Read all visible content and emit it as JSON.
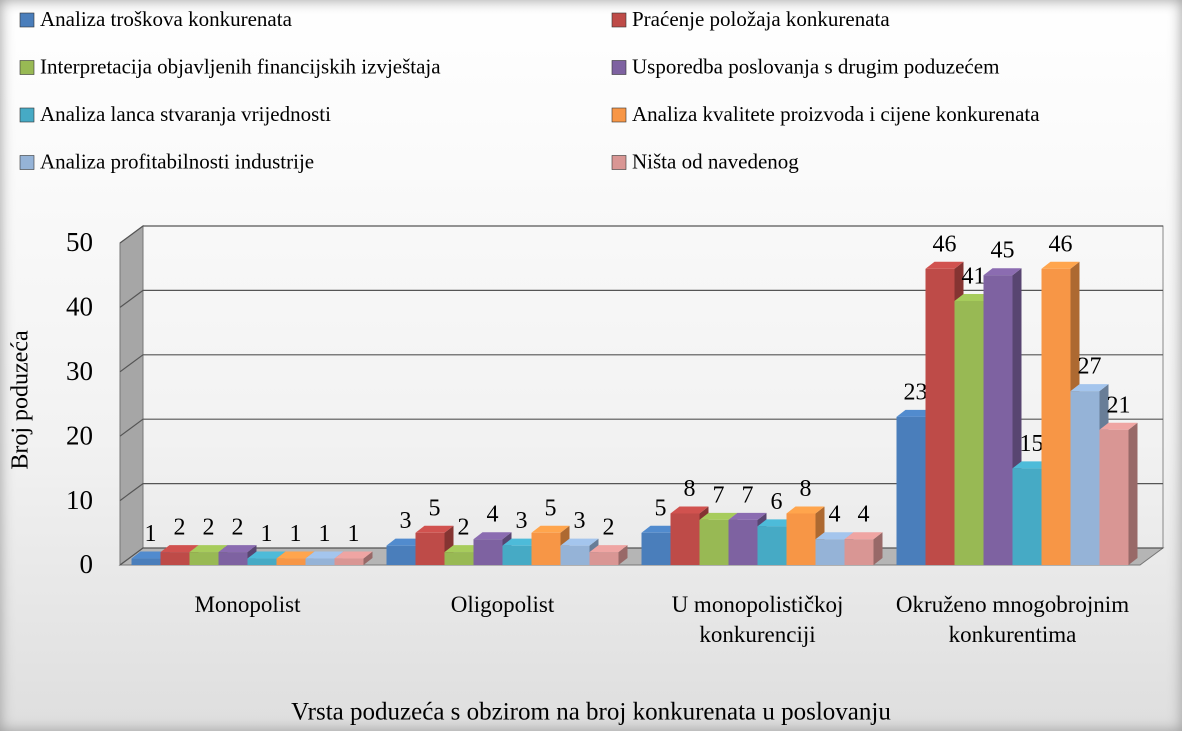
{
  "chart_data": {
    "type": "bar3d",
    "categories": [
      "Monopolist",
      "Oligopolist",
      "U monopolističkoj konkurenciji",
      "Okruženo mnogobrojnim konkurentima"
    ],
    "series": [
      {
        "name": "Analiza troškova konkurenata",
        "color": "#4a7ebb",
        "values": [
          1,
          3,
          5,
          23
        ]
      },
      {
        "name": "Praćenje položaja konkurenata",
        "color": "#be4b48",
        "values": [
          2,
          5,
          8,
          46
        ]
      },
      {
        "name": "Interpretacija objavljenih financijskih izvještaja",
        "color": "#98b954",
        "values": [
          2,
          2,
          7,
          41
        ]
      },
      {
        "name": "Usporedba poslovanja s drugim poduzećem",
        "color": "#7e62a1",
        "values": [
          2,
          4,
          7,
          45
        ]
      },
      {
        "name": "Analiza lanca stvaranja vrijednosti",
        "color": "#46aac5",
        "values": [
          1,
          3,
          6,
          15
        ]
      },
      {
        "name": "Analiza kvalitete proizvoda i cijene konkurenata",
        "color": "#f79646",
        "values": [
          1,
          5,
          8,
          46
        ]
      },
      {
        "name": "Analiza profitabilnosti industrije",
        "color": "#95b3d7",
        "values": [
          1,
          3,
          4,
          27
        ]
      },
      {
        "name": "Ništa od navedenog",
        "color": "#d99694",
        "values": [
          1,
          2,
          4,
          21
        ]
      }
    ],
    "ylabel": "Broj poduzeća",
    "xlabel": "Vrsta poduzeća s obzirom na broj konkurenata u poslovanju",
    "ylim": [
      0,
      50
    ],
    "yticks": [
      0,
      10,
      20,
      30,
      40,
      50
    ],
    "grid": true,
    "legend": "top"
  }
}
